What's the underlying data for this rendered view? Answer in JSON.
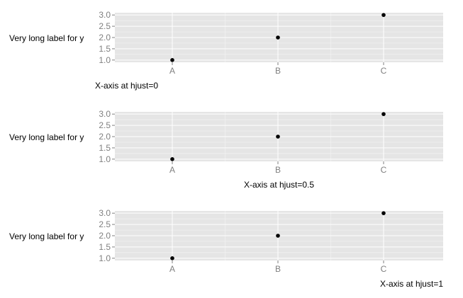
{
  "chart_data": [
    {
      "type": "scatter",
      "categories": [
        "A",
        "B",
        "C"
      ],
      "values": [
        1.0,
        2.0,
        3.0
      ],
      "yticks": [
        "1.0",
        "1.5",
        "2.0",
        "2.5",
        "3.0"
      ],
      "ylim": [
        0.9,
        3.1
      ],
      "xlabel": "X-axis at hjust=0",
      "xlabel_hjust": 0,
      "ylabel": "Very long label for y",
      "grid": true,
      "background": "#e5e5e5"
    },
    {
      "type": "scatter",
      "categories": [
        "A",
        "B",
        "C"
      ],
      "values": [
        1.0,
        2.0,
        3.0
      ],
      "yticks": [
        "1.0",
        "1.5",
        "2.0",
        "2.5",
        "3.0"
      ],
      "ylim": [
        0.9,
        3.1
      ],
      "xlabel": "X-axis at hjust=0.5",
      "xlabel_hjust": 0.5,
      "ylabel": "Very long label for y",
      "grid": true,
      "background": "#e5e5e5"
    },
    {
      "type": "scatter",
      "categories": [
        "A",
        "B",
        "C"
      ],
      "values": [
        1.0,
        2.0,
        3.0
      ],
      "yticks": [
        "1.0",
        "1.5",
        "2.0",
        "2.5",
        "3.0"
      ],
      "ylim": [
        0.9,
        3.1
      ],
      "xlabel": "X-axis at hjust=1",
      "xlabel_hjust": 1,
      "ylabel": "Very long label for y",
      "grid": true,
      "background": "#e5e5e5"
    }
  ]
}
